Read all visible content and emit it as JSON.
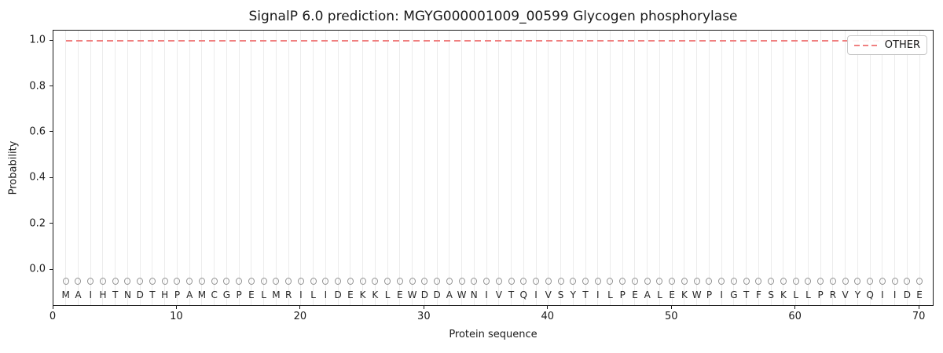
{
  "title": "SignalP 6.0 prediction: MGYG000001009_00599 Glycogen phosphorylase",
  "xlabel": "Protein sequence",
  "ylabel": "Probability",
  "legend": {
    "label": "OTHER"
  },
  "colors": {
    "other_line": "#f08080",
    "gridline": "#ececec",
    "marker_outline": "#919191",
    "letter": "#262626",
    "spine": "#1a1a1a"
  },
  "chart_data": {
    "type": "line",
    "title": "SignalP 6.0 prediction: MGYG000001009_00599 Glycogen phosphorylase",
    "xlabel": "Protein sequence",
    "ylabel": "Probability",
    "xlim": [
      0,
      71.2
    ],
    "ylim": [
      -0.161,
      1.045
    ],
    "grid": "vertical gridline at every residue position",
    "legend_position": "upper right",
    "x_ticks": [
      "0",
      "10",
      "20",
      "30",
      "40",
      "50",
      "60",
      "70"
    ],
    "y_ticks": [
      "0.0",
      "0.2",
      "0.4",
      "0.6",
      "0.8",
      "1.0"
    ],
    "x": [
      1,
      2,
      3,
      4,
      5,
      6,
      7,
      8,
      9,
      10,
      11,
      12,
      13,
      14,
      15,
      16,
      17,
      18,
      19,
      20,
      21,
      22,
      23,
      24,
      25,
      26,
      27,
      28,
      29,
      30,
      31,
      32,
      33,
      34,
      35,
      36,
      37,
      38,
      39,
      40,
      41,
      42,
      43,
      44,
      45,
      46,
      47,
      48,
      49,
      50,
      51,
      52,
      53,
      54,
      55,
      56,
      57,
      58,
      59,
      60,
      61,
      62,
      63,
      64,
      65,
      66,
      67,
      68,
      69,
      70
    ],
    "series": [
      {
        "name": "OTHER",
        "style": "dashed",
        "color": "#f08080",
        "values": [
          1.0,
          1.0,
          1.0,
          1.0,
          1.0,
          1.0,
          1.0,
          1.0,
          1.0,
          1.0,
          1.0,
          1.0,
          1.0,
          1.0,
          1.0,
          1.0,
          1.0,
          1.0,
          1.0,
          1.0,
          1.0,
          1.0,
          1.0,
          1.0,
          1.0,
          1.0,
          1.0,
          1.0,
          1.0,
          1.0,
          1.0,
          1.0,
          1.0,
          1.0,
          1.0,
          1.0,
          1.0,
          1.0,
          1.0,
          1.0,
          1.0,
          1.0,
          1.0,
          1.0,
          1.0,
          1.0,
          1.0,
          1.0,
          1.0,
          1.0,
          1.0,
          1.0,
          1.0,
          1.0,
          1.0,
          1.0,
          1.0,
          1.0,
          1.0,
          1.0,
          1.0,
          1.0,
          1.0,
          1.0,
          1.0,
          1.0,
          1.0,
          1.0,
          1.0,
          1.0
        ]
      }
    ],
    "sequence_markers": {
      "letters": "MAIHTNDTHPAMCGPELMRILIDEKKLEWDDAWNIVTQIVSYTILPEALEKWPIGTFSKLLPRVYQIIDE",
      "marker": "open-circle",
      "marker_y": -0.05,
      "letter_y": -0.108
    }
  }
}
